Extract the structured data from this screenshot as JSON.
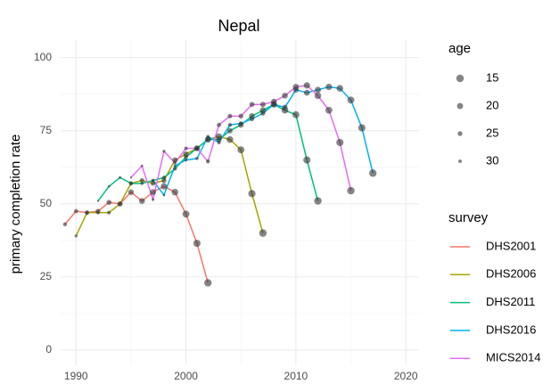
{
  "chart_data": {
    "type": "line",
    "title": "Nepal",
    "y_label": "primary completion rate",
    "xlim": [
      1988.6,
      2021.2
    ],
    "ylim": [
      -5.2,
      106
    ],
    "xticks": [
      1990,
      2000,
      2010,
      2020
    ],
    "yticks": [
      0,
      25,
      50,
      75,
      100
    ],
    "minor_xticks": [
      1995,
      2005,
      2015
    ],
    "minor_yticks": [
      12.5,
      37.5,
      62.5,
      87.5
    ],
    "grid": true,
    "point_color": "#333333",
    "size_legend": {
      "title": "age",
      "values": [
        15,
        20,
        25,
        30
      ]
    },
    "legend_title": "survey",
    "series": [
      {
        "name": "DHS2001",
        "color": "#F8766D",
        "x": [
          1989,
          1990,
          1991,
          1992,
          1993,
          1994,
          1995,
          1996,
          1997,
          1998,
          1999,
          2000,
          2001,
          2002
        ],
        "values": [
          43,
          47.5,
          47,
          47.5,
          50.5,
          50,
          54,
          51,
          54,
          56,
          54,
          46.5,
          36.5,
          23
        ],
        "ages": [
          28,
          27,
          26,
          25,
          24,
          23,
          22,
          21,
          20,
          19,
          18,
          17,
          16,
          15
        ]
      },
      {
        "name": "DHS2006",
        "color": "#A3A500",
        "x": [
          1990,
          1991,
          1992,
          1993,
          1994,
          1995,
          1996,
          1997,
          1998,
          1999,
          2000,
          2001,
          2002,
          2003,
          2004,
          2005,
          2006,
          2007
        ],
        "values": [
          39,
          47,
          47,
          47,
          50,
          57,
          58,
          57,
          58,
          65,
          67,
          69,
          72,
          73,
          72,
          68.5,
          53.5,
          40
        ],
        "ages": [
          32,
          31,
          30,
          29,
          28,
          27,
          26,
          25,
          24,
          23,
          22,
          21,
          20,
          19,
          18,
          17,
          16,
          15
        ]
      },
      {
        "name": "DHS2011",
        "color": "#00BF7D",
        "x": [
          1992,
          1993,
          1994,
          1995,
          1996,
          1997,
          1998,
          1999,
          2000,
          2001,
          2002,
          2003,
          2004,
          2005,
          2006,
          2007,
          2008,
          2009,
          2010,
          2011,
          2012
        ],
        "values": [
          51,
          56,
          59,
          57,
          57,
          58,
          59,
          62,
          66,
          69,
          72,
          72,
          75,
          77,
          80,
          82,
          84,
          82,
          80.5,
          65,
          51
        ],
        "ages": [
          35,
          34,
          33,
          32,
          31,
          30,
          29,
          28,
          27,
          26,
          25,
          24,
          23,
          22,
          21,
          20,
          19,
          18,
          17,
          16,
          15
        ]
      },
      {
        "name": "DHS2016",
        "color": "#00B0F6",
        "x": [
          1997,
          1998,
          1999,
          2000,
          2001,
          2002,
          2003,
          2004,
          2005,
          2006,
          2007,
          2008,
          2009,
          2010,
          2011,
          2012,
          2013,
          2014,
          2015,
          2016,
          2017
        ],
        "values": [
          58,
          53,
          63,
          65,
          65.5,
          73,
          71,
          77,
          77.5,
          79,
          81,
          84,
          83,
          89,
          88,
          89,
          90,
          89.5,
          85.5,
          76,
          60.5
        ],
        "ages": [
          35,
          34,
          33,
          32,
          31,
          30,
          29,
          28,
          27,
          26,
          25,
          24,
          23,
          22,
          21,
          20,
          19,
          18,
          17,
          16,
          15
        ]
      },
      {
        "name": "MICS2014",
        "color": "#E76BF3",
        "x": [
          1995,
          1996,
          1997,
          1998,
          1999,
          2000,
          2001,
          2002,
          2003,
          2004,
          2005,
          2006,
          2007,
          2008,
          2009,
          2010,
          2011,
          2012,
          2013,
          2014,
          2015
        ],
        "values": [
          59,
          63,
          51.5,
          68,
          64,
          69,
          69,
          64.5,
          77,
          80,
          80,
          84,
          84,
          85,
          87,
          90,
          90.5,
          87,
          82,
          71,
          54.5
        ],
        "ages": [
          35,
          34,
          33,
          32,
          31,
          30,
          29,
          28,
          27,
          26,
          25,
          24,
          23,
          22,
          21,
          20,
          19,
          18,
          17,
          16,
          15
        ]
      }
    ]
  }
}
